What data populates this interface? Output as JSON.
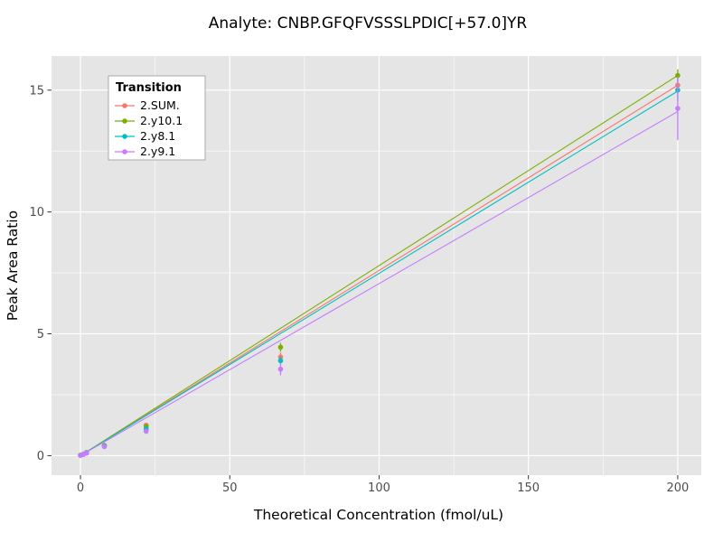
{
  "chart_data": {
    "type": "scatter",
    "title": "Analyte: CNBP.GFQFVSSSLPDIC[+57.0]YR",
    "xlabel": "Theoretical Concentration (fmol/uL)",
    "ylabel": "Peak Area Ratio",
    "xlim": [
      -9.7,
      207.9
    ],
    "ylim": [
      -0.8,
      16.4
    ],
    "x_ticks": [
      0,
      50,
      100,
      150,
      200
    ],
    "x_minor_ticks": [
      25,
      75,
      125,
      175
    ],
    "y_ticks": [
      0,
      5,
      10,
      15
    ],
    "y_minor_ticks": [
      2.5,
      7.5,
      12.5
    ],
    "grid": "white major and minor gridlines on gray panel",
    "panel_background": "#E5E5E5",
    "legend": {
      "title": "Transition",
      "position": "top-left",
      "entries": [
        "2.SUM.",
        "2.y10.1",
        "2.y8.1",
        "2.y9.1"
      ]
    },
    "series": [
      {
        "name": "2.SUM.",
        "color": "#F8766D",
        "x": [
          0,
          1,
          2,
          8,
          22,
          67,
          200
        ],
        "y": [
          0.02,
          0.06,
          0.13,
          0.42,
          1.25,
          4.05,
          15.2
        ],
        "yerr": [
          0,
          0,
          0,
          0.03,
          0.08,
          0.18,
          0.35
        ],
        "fit": {
          "slope": 0.076,
          "intercept": 0
        }
      },
      {
        "name": "2.y10.1",
        "color": "#7CAE00",
        "x": [
          0,
          1,
          2,
          8,
          22,
          67,
          200
        ],
        "y": [
          0.02,
          0.06,
          0.12,
          0.41,
          1.2,
          4.45,
          15.6
        ],
        "yerr": [
          0,
          0,
          0,
          0.03,
          0.08,
          0.18,
          0.25
        ],
        "fit": {
          "slope": 0.078,
          "intercept": 0
        }
      },
      {
        "name": "2.y8.1",
        "color": "#00BFC4",
        "x": [
          0,
          1,
          2,
          8,
          22,
          67,
          200
        ],
        "y": [
          0.02,
          0.05,
          0.11,
          0.39,
          1.1,
          3.9,
          15.0
        ],
        "yerr": [
          0,
          0,
          0,
          0.03,
          0.08,
          0.15,
          0.45
        ],
        "fit": {
          "slope": 0.0748,
          "intercept": 0
        }
      },
      {
        "name": "2.y9.1",
        "color": "#C77CFF",
        "x": [
          0,
          1,
          2,
          8,
          22,
          67,
          200
        ],
        "y": [
          0.01,
          0.05,
          0.1,
          0.37,
          1.0,
          3.55,
          14.25
        ],
        "yerr": [
          0,
          0,
          0,
          0.03,
          0.1,
          0.25,
          1.3
        ],
        "fit": {
          "slope": 0.0706,
          "intercept": 0
        }
      }
    ]
  }
}
